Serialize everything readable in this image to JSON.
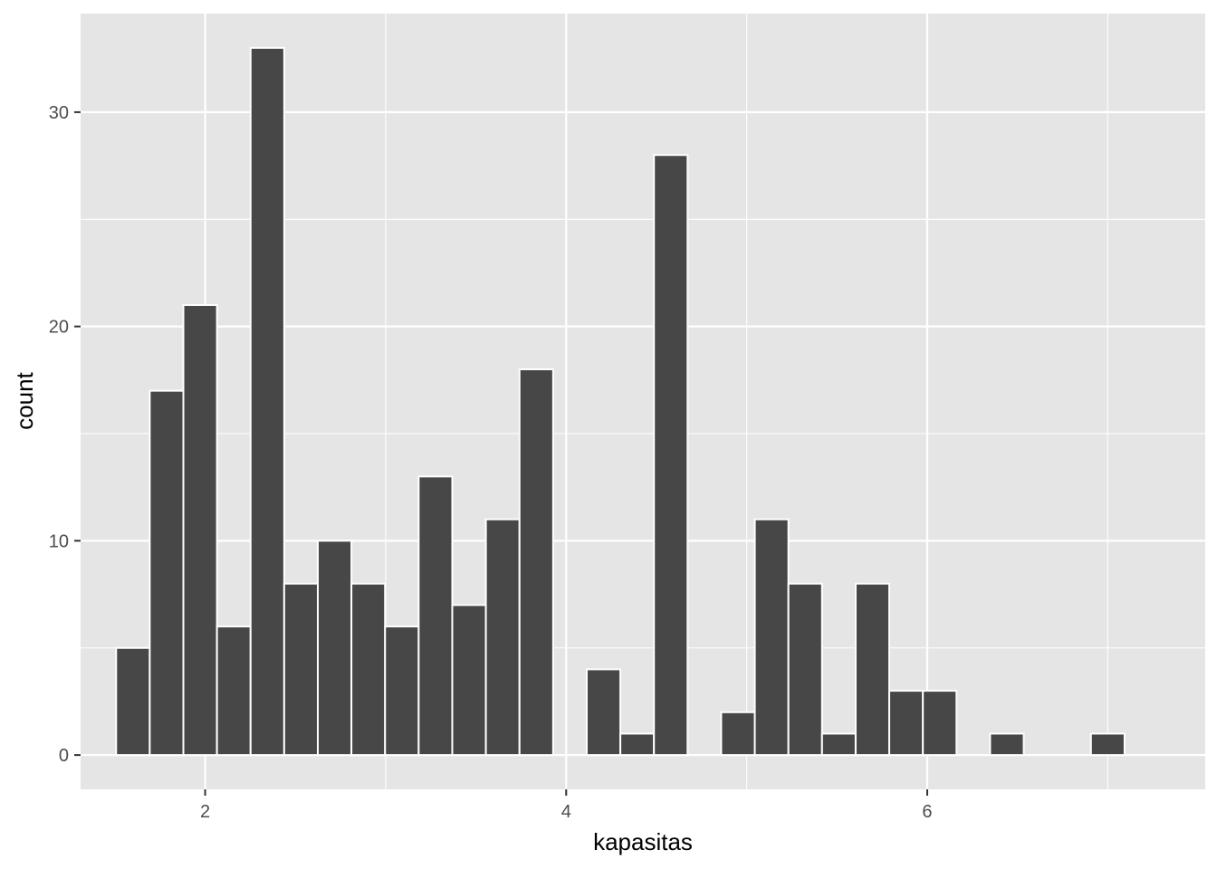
{
  "chart_data": {
    "type": "bar",
    "subtype": "histogram",
    "xlabel": "kapasitas",
    "ylabel": "count",
    "xlim": [
      1.31,
      7.54
    ],
    "ylim": [
      -1.6,
      34.6
    ],
    "x_ticks": [
      2,
      4,
      6
    ],
    "x_minor_ticks": [
      3,
      5,
      7
    ],
    "y_ticks": [
      0,
      10,
      20,
      30
    ],
    "y_minor_ticks": [
      5,
      15,
      25
    ],
    "bin_width": 0.1862,
    "bins": [
      {
        "center": 1.6,
        "count": 5
      },
      {
        "center": 1.7862,
        "count": 17
      },
      {
        "center": 1.9724,
        "count": 21
      },
      {
        "center": 2.1586,
        "count": 6
      },
      {
        "center": 2.3448,
        "count": 33
      },
      {
        "center": 2.531,
        "count": 8
      },
      {
        "center": 2.7172,
        "count": 10
      },
      {
        "center": 2.9034,
        "count": 8
      },
      {
        "center": 3.0897,
        "count": 6
      },
      {
        "center": 3.2759,
        "count": 13
      },
      {
        "center": 3.4621,
        "count": 7
      },
      {
        "center": 3.6483,
        "count": 11
      },
      {
        "center": 3.8345,
        "count": 18
      },
      {
        "center": 4.0207,
        "count": 0
      },
      {
        "center": 4.2069,
        "count": 4
      },
      {
        "center": 4.3931,
        "count": 1
      },
      {
        "center": 4.5793,
        "count": 28
      },
      {
        "center": 4.7655,
        "count": 0
      },
      {
        "center": 4.9517,
        "count": 2
      },
      {
        "center": 5.1379,
        "count": 11
      },
      {
        "center": 5.3241,
        "count": 8
      },
      {
        "center": 5.5103,
        "count": 1
      },
      {
        "center": 5.6966,
        "count": 8
      },
      {
        "center": 5.8828,
        "count": 3
      },
      {
        "center": 6.069,
        "count": 3
      },
      {
        "center": 6.2552,
        "count": 0
      },
      {
        "center": 6.4414,
        "count": 1
      },
      {
        "center": 6.6276,
        "count": 0
      },
      {
        "center": 6.8138,
        "count": 0
      },
      {
        "center": 7.0,
        "count": 1
      }
    ],
    "grid": true,
    "colors": {
      "panel_background": "#e5e5e5",
      "grid_line": "#ffffff",
      "bar_fill": "#474747",
      "bar_outline": "#ffffff",
      "tick_label": "#4d4d4d",
      "axis_title": "#000000"
    }
  }
}
